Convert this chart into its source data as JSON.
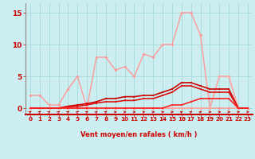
{
  "bg_color": "#cceef0",
  "grid_color": "#aadddd",
  "xlabel": "Vent moyen/en rafales ( km/h )",
  "ylabel_ticks": [
    0,
    5,
    10,
    15
  ],
  "xticks": [
    0,
    1,
    2,
    3,
    4,
    5,
    6,
    7,
    8,
    9,
    10,
    11,
    12,
    13,
    14,
    15,
    16,
    17,
    18,
    19,
    20,
    21,
    22,
    23
  ],
  "xlim": [
    -0.5,
    23.5
  ],
  "ylim": [
    -1.0,
    16.5
  ],
  "series": [
    {
      "x": [
        0,
        1,
        2,
        3,
        4,
        5,
        6,
        7,
        8,
        9,
        10,
        11,
        12,
        13,
        14,
        15,
        16,
        17,
        18,
        19,
        20,
        21,
        22,
        23
      ],
      "y": [
        2,
        2,
        0.5,
        0.5,
        3,
        5,
        0,
        8,
        8,
        6,
        6.5,
        5,
        8.5,
        8,
        10,
        10,
        15,
        15,
        11.5,
        0,
        0,
        0,
        0,
        0
      ],
      "color": "#ff9999",
      "lw": 1.0
    },
    {
      "x": [
        0,
        1,
        2,
        3,
        4,
        5,
        6,
        7,
        8,
        9,
        10,
        11,
        12,
        13,
        14,
        15,
        16,
        17,
        18,
        19,
        20,
        21,
        22,
        23
      ],
      "y": [
        0,
        0,
        0,
        0,
        0,
        0,
        0,
        0,
        0,
        0,
        0,
        0,
        0,
        0,
        0,
        0,
        0,
        0,
        0,
        0,
        5,
        5,
        0,
        0
      ],
      "color": "#ff9999",
      "lw": 1.0
    },
    {
      "x": [
        0,
        1,
        2,
        3,
        4,
        5,
        6,
        7,
        8,
        9,
        10,
        11,
        12,
        13,
        14,
        15,
        16,
        17,
        18,
        19,
        20,
        21,
        22,
        23
      ],
      "y": [
        0,
        0,
        0,
        0,
        0,
        0,
        0,
        0,
        0,
        0,
        0,
        0,
        0,
        0,
        0,
        0,
        0,
        0,
        0,
        0,
        5,
        5,
        0,
        0
      ],
      "color": "#ffaaaa",
      "lw": 1.0
    },
    {
      "x": [
        0,
        1,
        2,
        3,
        4,
        5,
        6,
        7,
        8,
        9,
        10,
        11,
        12,
        13,
        14,
        15,
        16,
        17,
        18,
        19,
        20,
        21,
        22,
        23
      ],
      "y": [
        0,
        0,
        0,
        0,
        0.3,
        0.5,
        0.7,
        1.0,
        1.5,
        1.5,
        1.8,
        1.8,
        2.0,
        2.0,
        2.5,
        3.0,
        4.0,
        4.0,
        3.5,
        3.0,
        3.0,
        3.0,
        0,
        0
      ],
      "color": "#cc0000",
      "lw": 1.2
    },
    {
      "x": [
        0,
        1,
        2,
        3,
        4,
        5,
        6,
        7,
        8,
        9,
        10,
        11,
        12,
        13,
        14,
        15,
        16,
        17,
        18,
        19,
        20,
        21,
        22,
        23
      ],
      "y": [
        0,
        0,
        0,
        0,
        0.2,
        0.3,
        0.5,
        0.8,
        1.0,
        1.0,
        1.2,
        1.2,
        1.5,
        1.5,
        2.0,
        2.5,
        3.5,
        3.5,
        3.0,
        2.5,
        2.5,
        2.5,
        0,
        0
      ],
      "color": "#dd1111",
      "lw": 1.2
    },
    {
      "x": [
        0,
        1,
        2,
        3,
        4,
        5,
        6,
        7,
        8,
        9,
        10,
        11,
        12,
        13,
        14,
        15,
        16,
        17,
        18,
        19,
        20,
        21,
        22,
        23
      ],
      "y": [
        0,
        0,
        0,
        0,
        0,
        0,
        0,
        0,
        0,
        0,
        0,
        0,
        0,
        0,
        0,
        0.5,
        0.5,
        1.0,
        1.5,
        1.5,
        1.5,
        1.5,
        0,
        0
      ],
      "color": "#ff2222",
      "lw": 1.2
    }
  ],
  "arrow_angles_deg": [
    45,
    45,
    45,
    45,
    45,
    45,
    45,
    45,
    45,
    10,
    10,
    10,
    10,
    10,
    10,
    10,
    45,
    45,
    45,
    10,
    10,
    10,
    10,
    10
  ]
}
